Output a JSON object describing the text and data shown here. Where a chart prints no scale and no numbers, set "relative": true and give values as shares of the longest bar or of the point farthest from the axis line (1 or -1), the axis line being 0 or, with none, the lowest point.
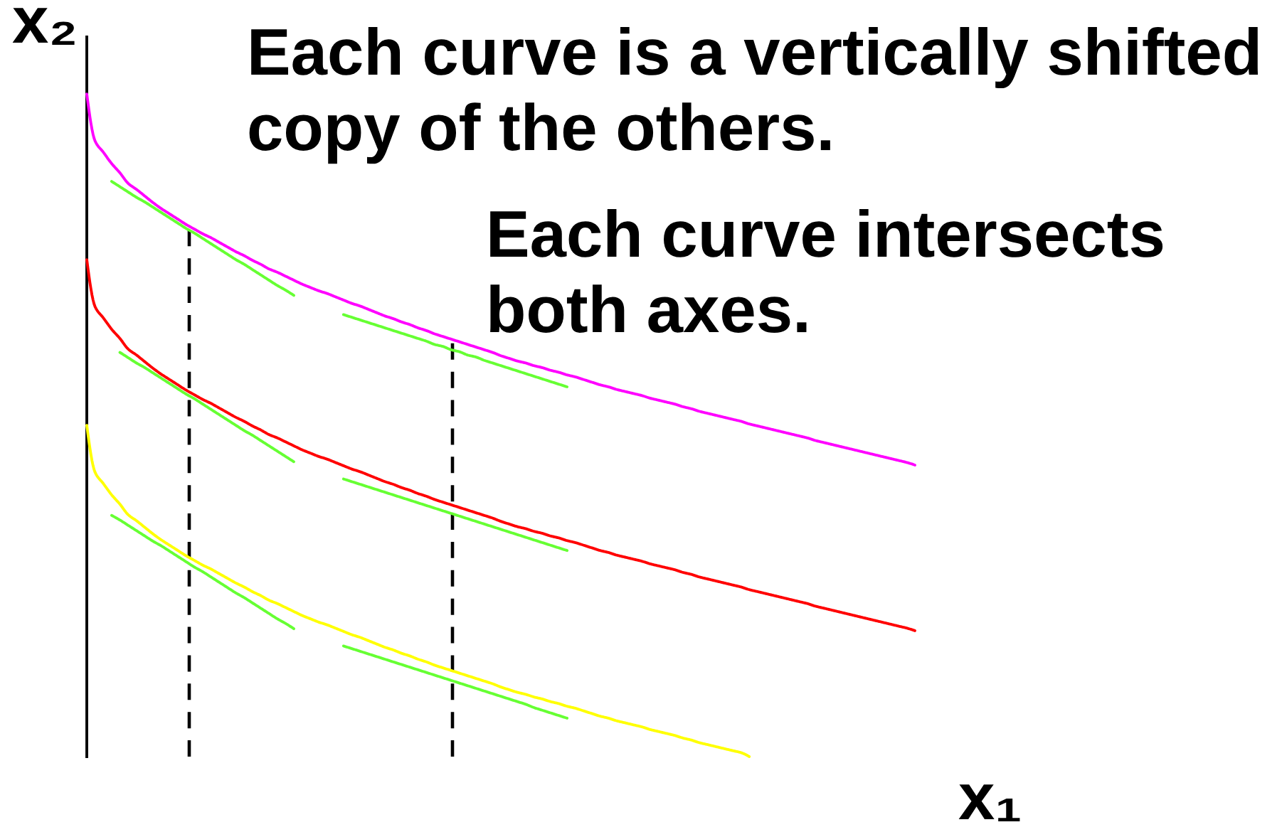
{
  "chart_data": {
    "type": "line",
    "title": "Each curve is a vertically shifted copy of the others.",
    "xlabel": "x₁",
    "ylabel": "x₂",
    "annotations": [
      "Each curve intersects both axes."
    ],
    "relative": true,
    "tick_labels": false,
    "line_style": "solid",
    "categories": [
      null,
      null,
      null,
      null,
      null,
      null,
      null,
      null,
      null,
      null,
      null,
      null,
      null,
      null,
      null,
      null,
      null,
      null,
      null,
      null,
      null,
      null,
      null,
      null,
      null,
      null,
      null,
      null,
      null,
      null,
      null,
      null,
      null,
      null,
      null,
      null,
      null,
      null,
      null,
      null,
      null,
      null,
      null,
      null,
      null,
      null,
      null,
      null,
      null,
      null,
      null,
      null,
      null,
      null,
      null,
      null,
      null,
      null,
      null,
      null,
      null,
      null,
      null,
      null,
      null,
      null,
      null,
      null,
      null,
      null,
      null,
      null,
      null,
      null,
      null,
      null,
      null,
      null,
      null,
      null,
      null,
      null,
      null,
      null,
      null,
      null,
      null,
      null,
      null,
      null,
      null,
      null,
      null,
      null,
      null,
      null,
      null,
      null,
      null,
      null,
      null
    ],
    "series": [
      {
        "color": "#ff00ff",
        "values": [
          1,
          0.929,
          0.912,
          0.895,
          0.881,
          0.865,
          0.856,
          0.846,
          0.836,
          0.827,
          0.819,
          0.811,
          0.803,
          0.796,
          0.789,
          0.783,
          0.776,
          0.769,
          0.762,
          0.756,
          0.749,
          0.743,
          0.736,
          0.731,
          0.725,
          0.719,
          0.713,
          0.708,
          0.703,
          0.699,
          0.694,
          0.689,
          0.684,
          0.68,
          0.675,
          0.67,
          0.665,
          0.661,
          0.656,
          0.652,
          0.647,
          0.643,
          0.638,
          0.634,
          0.63,
          0.626,
          0.622,
          0.618,
          0.614,
          0.61,
          0.605,
          0.601,
          0.597,
          0.594,
          0.59,
          0.587,
          0.583,
          0.58,
          0.576,
          0.573,
          0.569,
          0.565,
          0.561,
          0.558,
          0.554,
          0.551,
          0.548,
          0.545,
          0.541,
          0.538,
          0.535,
          0.532,
          0.528,
          0.525,
          0.521,
          0.518,
          0.515,
          0.512,
          0.509,
          0.506,
          0.502,
          0.499,
          0.496,
          0.493,
          0.49,
          0.487,
          0.484,
          0.481,
          0.477,
          0.474,
          0.471,
          0.468,
          0.465,
          0.462,
          0.459,
          0.456,
          0.453,
          0.45,
          0.447,
          0.444,
          0.44
        ]
      },
      {
        "color": "#ff0000",
        "values": [
          0.75,
          0.679,
          0.662,
          0.645,
          0.631,
          0.615,
          0.606,
          0.596,
          0.586,
          0.577,
          0.569,
          0.561,
          0.553,
          0.546,
          0.539,
          0.533,
          0.526,
          0.519,
          0.512,
          0.506,
          0.499,
          0.493,
          0.486,
          0.481,
          0.475,
          0.469,
          0.463,
          0.458,
          0.453,
          0.449,
          0.444,
          0.439,
          0.434,
          0.43,
          0.425,
          0.42,
          0.415,
          0.411,
          0.406,
          0.402,
          0.397,
          0.393,
          0.388,
          0.384,
          0.38,
          0.376,
          0.372,
          0.368,
          0.364,
          0.36,
          0.355,
          0.351,
          0.347,
          0.344,
          0.34,
          0.337,
          0.333,
          0.33,
          0.326,
          0.323,
          0.319,
          0.315,
          0.311,
          0.308,
          0.304,
          0.301,
          0.298,
          0.295,
          0.291,
          0.288,
          0.285,
          0.282,
          0.278,
          0.275,
          0.271,
          0.268,
          0.265,
          0.262,
          0.259,
          0.256,
          0.252,
          0.249,
          0.246,
          0.243,
          0.24,
          0.237,
          0.234,
          0.231,
          0.227,
          0.224,
          0.221,
          0.218,
          0.215,
          0.212,
          0.209,
          0.206,
          0.203,
          0.2,
          0.197,
          0.194,
          0.19
        ]
      },
      {
        "color": "#ffff00",
        "values": [
          0.5,
          0.429,
          0.412,
          0.395,
          0.381,
          0.365,
          0.356,
          0.346,
          0.336,
          0.327,
          0.319,
          0.311,
          0.303,
          0.296,
          0.289,
          0.283,
          0.276,
          0.269,
          0.262,
          0.256,
          0.249,
          0.243,
          0.236,
          0.231,
          0.225,
          0.219,
          0.213,
          0.208,
          0.203,
          0.199,
          0.194,
          0.189,
          0.184,
          0.18,
          0.175,
          0.17,
          0.165,
          0.161,
          0.156,
          0.152,
          0.147,
          0.143,
          0.138,
          0.134,
          0.13,
          0.126,
          0.122,
          0.118,
          0.114,
          0.11,
          0.105,
          0.101,
          0.097,
          0.094,
          0.09,
          0.087,
          0.083,
          0.08,
          0.076,
          0.073,
          0.069,
          0.065,
          0.061,
          0.058,
          0.054,
          0.051,
          0.048,
          0.045,
          0.041,
          0.038,
          0.035,
          0.032,
          0.028,
          0.025,
          0.021,
          0.018,
          0.015,
          0.012,
          0.009,
          0.006,
          0,
          null,
          null,
          null,
          null,
          null,
          null,
          null,
          null,
          null,
          null,
          null,
          null,
          null,
          null,
          null,
          null,
          null,
          null,
          null,
          null
        ]
      },
      {
        "color": "#66ff33",
        "values": [
          null,
          null,
          null,
          0.868,
          0.86,
          0.852,
          0.844,
          0.837,
          0.829,
          0.821,
          0.813,
          0.805,
          0.797,
          0.79,
          0.782,
          0.774,
          0.766,
          0.758,
          0.75,
          0.743,
          0.735,
          0.727,
          0.719,
          0.711,
          0.704,
          0.696,
          null,
          null,
          null,
          null,
          null,
          null,
          null,
          null,
          null,
          null,
          null,
          null,
          null,
          null,
          null,
          null,
          null,
          null,
          null,
          null,
          null,
          null,
          null,
          null,
          null,
          null,
          null,
          null,
          null,
          null,
          null,
          null,
          null,
          null,
          null,
          null,
          null,
          null,
          null,
          null,
          null,
          null,
          null,
          null,
          null,
          null,
          null,
          null,
          null,
          null,
          null,
          null,
          null,
          null,
          null,
          null,
          null,
          null,
          null,
          null,
          null,
          null,
          null,
          null,
          null,
          null,
          null,
          null,
          null,
          null,
          null,
          null,
          null,
          null,
          null
        ]
      },
      {
        "color": "#66ff33",
        "values": [
          null,
          null,
          null,
          null,
          null,
          null,
          null,
          null,
          null,
          null,
          null,
          null,
          null,
          null,
          null,
          null,
          null,
          null,
          null,
          null,
          null,
          null,
          null,
          null,
          null,
          null,
          null,
          null,
          null,
          null,
          null,
          0.667,
          0.663,
          0.659,
          0.655,
          0.651,
          0.647,
          0.643,
          0.639,
          0.635,
          0.631,
          0.627,
          0.622,
          0.619,
          0.614,
          0.611,
          0.606,
          0.603,
          0.598,
          0.594,
          0.59,
          0.586,
          0.582,
          0.578,
          0.574,
          0.57,
          0.566,
          0.562,
          0.558,
          null,
          null,
          null,
          null,
          null,
          null,
          null,
          null,
          null,
          null,
          null,
          null,
          null,
          null,
          null,
          null,
          null,
          null,
          null,
          null,
          null,
          null,
          null,
          null,
          null,
          null,
          null,
          null,
          null,
          null,
          null,
          null,
          null,
          null,
          null,
          null,
          null,
          null,
          null,
          null,
          null,
          null
        ]
      },
      {
        "color": "#66ff33",
        "values": [
          null,
          null,
          null,
          null,
          0.61,
          0.602,
          0.594,
          0.587,
          0.579,
          0.571,
          0.563,
          0.555,
          0.547,
          0.54,
          0.532,
          0.524,
          0.516,
          0.508,
          0.5,
          0.492,
          0.485,
          0.477,
          0.469,
          0.461,
          0.453,
          0.445,
          null,
          null,
          null,
          null,
          null,
          null,
          null,
          null,
          null,
          null,
          null,
          null,
          null,
          null,
          null,
          null,
          null,
          null,
          null,
          null,
          null,
          null,
          null,
          null,
          null,
          null,
          null,
          null,
          null,
          null,
          null,
          null,
          null,
          null,
          null,
          null,
          null,
          null,
          null,
          null,
          null,
          null,
          null,
          null,
          null,
          null,
          null,
          null,
          null,
          null,
          null,
          null,
          null,
          null,
          null,
          null,
          null,
          null,
          null,
          null,
          null,
          null,
          null,
          null,
          null,
          null,
          null,
          null,
          null,
          null,
          null,
          null,
          null,
          null,
          null
        ]
      },
      {
        "color": "#66ff33",
        "values": [
          null,
          null,
          null,
          null,
          null,
          null,
          null,
          null,
          null,
          null,
          null,
          null,
          null,
          null,
          null,
          null,
          null,
          null,
          null,
          null,
          null,
          null,
          null,
          null,
          null,
          null,
          null,
          null,
          null,
          null,
          null,
          0.419,
          0.415,
          0.411,
          0.407,
          0.403,
          0.399,
          0.395,
          0.391,
          0.387,
          0.383,
          0.379,
          0.375,
          0.371,
          0.367,
          0.363,
          0.359,
          0.355,
          0.351,
          0.347,
          0.343,
          0.339,
          0.335,
          0.331,
          0.327,
          0.323,
          0.319,
          0.315,
          0.311,
          null,
          null,
          null,
          null,
          null,
          null,
          null,
          null,
          null,
          null,
          null,
          null,
          null,
          null,
          null,
          null,
          null,
          null,
          null,
          null,
          null,
          null,
          null,
          null,
          null,
          null,
          null,
          null,
          null,
          null,
          null,
          null,
          null,
          null,
          null,
          null,
          null,
          null,
          null,
          null,
          null,
          null
        ]
      },
      {
        "color": "#66ff33",
        "values": [
          null,
          null,
          null,
          0.364,
          0.357,
          0.349,
          0.341,
          0.333,
          0.325,
          0.318,
          0.31,
          0.302,
          0.294,
          0.286,
          0.279,
          0.271,
          0.263,
          0.255,
          0.247,
          0.24,
          0.232,
          0.224,
          0.216,
          0.208,
          0.201,
          0.193,
          null,
          null,
          null,
          null,
          null,
          null,
          null,
          null,
          null,
          null,
          null,
          null,
          null,
          null,
          null,
          null,
          null,
          null,
          null,
          null,
          null,
          null,
          null,
          null,
          null,
          null,
          null,
          null,
          null,
          null,
          null,
          null,
          null,
          null,
          null,
          null,
          null,
          null,
          null,
          null,
          null,
          null,
          null,
          null,
          null,
          null,
          null,
          null,
          null,
          null,
          null,
          null,
          null,
          null,
          null,
          null,
          null,
          null,
          null,
          null,
          null,
          null,
          null,
          null,
          null,
          null,
          null,
          null,
          null,
          null,
          null,
          null,
          null,
          null,
          null
        ]
      },
      {
        "color": "#66ff33",
        "values": [
          null,
          null,
          null,
          null,
          null,
          null,
          null,
          null,
          null,
          null,
          null,
          null,
          null,
          null,
          null,
          null,
          null,
          null,
          null,
          null,
          null,
          null,
          null,
          null,
          null,
          null,
          null,
          null,
          null,
          null,
          null,
          0.167,
          0.163,
          0.159,
          0.155,
          0.151,
          0.147,
          0.143,
          0.139,
          0.135,
          0.131,
          0.127,
          0.123,
          0.119,
          0.115,
          0.111,
          0.107,
          0.103,
          0.099,
          0.095,
          0.091,
          0.087,
          0.083,
          0.079,
          0.074,
          0.07,
          0.066,
          0.062,
          0.058,
          null,
          null,
          null,
          null,
          null,
          null,
          null,
          null,
          null,
          null,
          null,
          null,
          null,
          null,
          null,
          null,
          null,
          null,
          null,
          null,
          null,
          null,
          null,
          null,
          null,
          null,
          null,
          null,
          null,
          null,
          null,
          null,
          null,
          null,
          null,
          null,
          null,
          null,
          null,
          null,
          null,
          null
        ]
      }
    ]
  }
}
